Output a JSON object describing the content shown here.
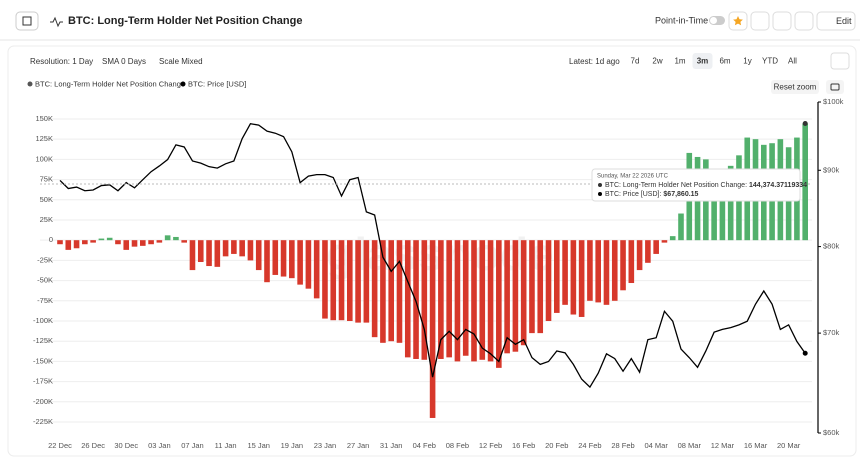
{
  "header": {
    "title": "BTC: Long-Term Holder Net Position Change",
    "point_in_time": "Point-in-Time",
    "edit": "Edit"
  },
  "controls": {
    "resolution": "Resolution: 1 Day",
    "sma": "SMA 0 Days",
    "scale": "Scale Mixed",
    "latest": "Latest: 1d ago",
    "ranges": [
      "7d",
      "2w",
      "1m",
      "3m",
      "6m",
      "1y",
      "YTD",
      "All"
    ],
    "active_range": "3m",
    "reset_zoom": "Reset zoom"
  },
  "chart_data": {
    "type": "combo",
    "watermark": "glassnode",
    "categories": [
      "22 Dec",
      null,
      null,
      null,
      "26 Dec",
      null,
      null,
      null,
      "30 Dec",
      null,
      null,
      null,
      "03 Jan",
      null,
      null,
      null,
      "07 Jan",
      null,
      null,
      null,
      "11 Jan",
      null,
      null,
      null,
      "15 Jan",
      null,
      null,
      null,
      "19 Jan",
      null,
      null,
      null,
      "23 Jan",
      null,
      null,
      null,
      "27 Jan",
      null,
      null,
      null,
      "31 Jan",
      null,
      null,
      null,
      "04 Feb",
      null,
      null,
      null,
      "08 Feb",
      null,
      null,
      null,
      "12 Feb",
      null,
      null,
      null,
      "16 Feb",
      null,
      null,
      null,
      "20 Feb",
      null,
      null,
      null,
      "24 Feb",
      null,
      null,
      null,
      "28 Feb",
      null,
      null,
      null,
      "04 Mar",
      null,
      null,
      null,
      "08 Mar",
      null,
      null,
      null,
      "12 Mar",
      null,
      null,
      null,
      "16 Mar",
      null,
      null,
      null,
      "20 Mar",
      null,
      null
    ],
    "series": [
      {
        "name": "BTC: Long-Term Holder Net Position Change",
        "type": "bar",
        "color": "#555555",
        "up_color": "#52b06c",
        "down_color": "#d7382b",
        "values": [
          -5000,
          -12000,
          -10000,
          -5000,
          -3000,
          2000,
          3000,
          -5000,
          -12000,
          -8000,
          -7000,
          -5000,
          -3000,
          6000,
          4000,
          -3000,
          -37000,
          -27000,
          -32000,
          -33000,
          -20000,
          -17000,
          -20000,
          -25000,
          -37000,
          -52000,
          -43000,
          -45000,
          -47000,
          -55000,
          -60000,
          -72000,
          -97000,
          -99000,
          -99000,
          -100000,
          -102000,
          -102000,
          -120000,
          -127000,
          -125000,
          -127000,
          -145000,
          -147000,
          -148000,
          -220000,
          -147000,
          -145000,
          -150000,
          -143000,
          -150000,
          -148000,
          -150000,
          -158000,
          -140000,
          -138000,
          -130000,
          -115000,
          -115000,
          -100000,
          -90000,
          -80000,
          -92000,
          -95000,
          -75000,
          -77000,
          -80000,
          -75000,
          -62000,
          -53000,
          -37000,
          -28000,
          -17000,
          -3000,
          5000,
          33000,
          108000,
          103000,
          100000,
          88000,
          67000,
          92000,
          105000,
          127000,
          125000,
          118000,
          120000,
          125000,
          115000,
          127000,
          144374.37119334
        ]
      },
      {
        "name": "BTC: Price [USD]",
        "type": "line",
        "axis": "y2",
        "color": "#000000",
        "values": [
          88600,
          87500,
          87700,
          87200,
          87300,
          87900,
          88000,
          87200,
          88300,
          87600,
          88700,
          89800,
          90600,
          91500,
          93600,
          93300,
          91300,
          91000,
          90500,
          90300,
          90900,
          91300,
          94500,
          96700,
          96500,
          95600,
          95300,
          94800,
          92600,
          88300,
          89200,
          89400,
          89400,
          89000,
          86500,
          88700,
          89000,
          84400,
          84000,
          78700,
          77000,
          78200,
          75800,
          73500,
          70400,
          65400,
          69300,
          70200,
          69300,
          70400,
          69900,
          68400,
          67800,
          67000,
          69500,
          68800,
          69300,
          67400,
          66700,
          67000,
          68100,
          67900,
          66700,
          65200,
          64400,
          65800,
          67800,
          67300,
          66000,
          67300,
          65900,
          69300,
          69500,
          72400,
          71300,
          68300,
          67400,
          66400,
          68100,
          70100,
          70400,
          70600,
          70900,
          71300,
          73200,
          74700,
          73200,
          70400,
          70900,
          69100,
          67860.15
        ]
      }
    ],
    "ylim": [
      -238600,
      171000
    ],
    "yticks": [
      {
        "value": 150000,
        "label": "150K"
      },
      {
        "value": 125000,
        "label": "125K"
      },
      {
        "value": 100000,
        "label": "100K"
      },
      {
        "value": 75000,
        "label": "75K"
      },
      {
        "value": 50000,
        "label": "50K"
      },
      {
        "value": 25000,
        "label": "25K"
      },
      0,
      {
        "value": -25000,
        "label": "-25K"
      },
      {
        "value": -50000,
        "label": "-50K"
      },
      {
        "value": -75000,
        "label": "-75K"
      },
      {
        "value": -100000,
        "label": "-100K"
      },
      {
        "value": -125000,
        "label": "-125K"
      },
      {
        "value": -150000,
        "label": "-150K"
      },
      {
        "value": -175000,
        "label": "-175K"
      },
      {
        "value": -200000,
        "label": "-200K"
      },
      {
        "value": -225000,
        "label": "-225K"
      }
    ],
    "y2lim": [
      60000,
      100000
    ],
    "y2log": true,
    "y2ticks": [
      {
        "value": 100000,
        "label": "$100k"
      },
      {
        "value": 90000,
        "label": "$90k"
      },
      {
        "value": 80000,
        "label": "$80k"
      },
      {
        "value": 70000,
        "label": "$70k"
      },
      {
        "value": 60000,
        "label": "$60k"
      }
    ],
    "grid": true,
    "tooltip": {
      "date": "Sunday, Mar 22 2026 UTC",
      "rows": [
        {
          "label": "BTC: Long-Term Holder Net Position Change:",
          "value": "144,374.37119334"
        },
        {
          "label": "BTC: Price [USD]:",
          "value": "$67,860.15"
        }
      ]
    }
  }
}
